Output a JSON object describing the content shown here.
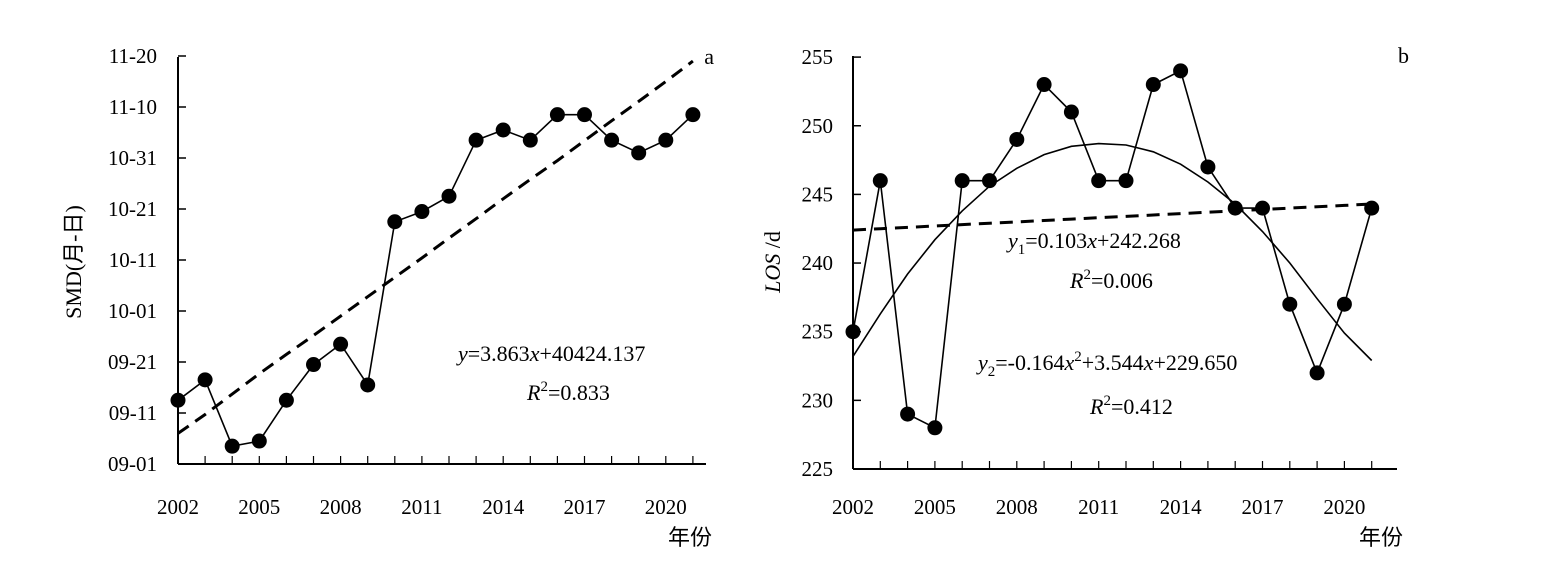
{
  "chart_data": [
    {
      "panel_label": "a",
      "type": "line",
      "ylabel": "SMD(月-日)",
      "xlabel": "年份",
      "x": [
        2002,
        2003,
        2004,
        2005,
        2006,
        2007,
        2008,
        2009,
        2010,
        2011,
        2012,
        2013,
        2014,
        2015,
        2016,
        2017,
        2018,
        2019,
        2020,
        2021
      ],
      "x_ticks": [
        "2002",
        "2005",
        "2008",
        "2011",
        "2014",
        "2017",
        "2020"
      ],
      "y_ticks": [
        "09-01",
        "09-11",
        "09-21",
        "10-01",
        "10-11",
        "10-21",
        "10-31",
        "11-10",
        "11-20"
      ],
      "ylim_days_after_sep1": [
        0,
        80
      ],
      "series": [
        {
          "style": "markers-line",
          "values_days_after_sep1": [
            12.5,
            16.5,
            3.5,
            4.5,
            12.5,
            19.5,
            23.5,
            15.5,
            47.5,
            49.5,
            52.5,
            63.5,
            65.5,
            63.5,
            68.5,
            68.5,
            63.5,
            61.0,
            63.5,
            68.5
          ]
        },
        {
          "style": "dashed-trend",
          "values_days_after_sep1": [
            6.0,
            9.7,
            13.7,
            17.7,
            21.5,
            25.2,
            29.0,
            32.8,
            36.6,
            40.4,
            44.3,
            48.1,
            52.0,
            55.8,
            59.5,
            63.4,
            67.3,
            71.1,
            75.0,
            79.0
          ]
        }
      ],
      "annotations": {
        "equation": "y=3.863x+40424.137",
        "r2": "R2=0.833",
        "eq_y": "y",
        "eq_mid": "=3.863",
        "eq_x": "x",
        "eq_end": "+40424.137",
        "r2_r": "R",
        "r2_sup": "2",
        "r2_val": "=0.833"
      }
    },
    {
      "panel_label": "b",
      "type": "line",
      "ylabel": "LOS /d",
      "ylabel_italic": "LOS",
      "ylabel_unit": " /d",
      "xlabel": "年份",
      "x": [
        2002,
        2003,
        2004,
        2005,
        2006,
        2007,
        2008,
        2009,
        2010,
        2011,
        2012,
        2013,
        2014,
        2015,
        2016,
        2017,
        2018,
        2019,
        2020,
        2021
      ],
      "x_ticks": [
        "2002",
        "2005",
        "2008",
        "2011",
        "2014",
        "2017",
        "2020"
      ],
      "y_ticks": [
        "225",
        "230",
        "235",
        "240",
        "245",
        "250",
        "255"
      ],
      "ylim": [
        225,
        255
      ],
      "series": [
        {
          "style": "markers-line",
          "values": [
            235,
            246,
            229,
            228,
            246,
            246,
            249,
            253,
            251,
            246,
            246,
            253,
            254,
            247,
            244,
            244,
            237,
            232,
            237,
            244
          ]
        },
        {
          "style": "dashed-linear-fit",
          "values": [
            242.4,
            242.5,
            242.6,
            242.7,
            242.8,
            242.9,
            243.0,
            243.1,
            243.2,
            243.3,
            243.4,
            243.5,
            243.6,
            243.7,
            243.8,
            243.9,
            244.0,
            244.1,
            244.2,
            244.3
          ]
        },
        {
          "style": "solid-quadratic-fit",
          "values": [
            233.2,
            236.3,
            239.2,
            241.7,
            243.8,
            245.6,
            246.9,
            247.9,
            248.5,
            248.7,
            248.6,
            248.1,
            247.2,
            245.9,
            244.3,
            242.3,
            240.0,
            237.4,
            234.9,
            232.9
          ]
        }
      ],
      "annotations": {
        "eq1": "y1=0.103x+242.268",
        "r2_1": "R2=0.006",
        "eq2": "y2=-0.164x2+3.544x+229.650",
        "r2_2": "R2=0.412",
        "eq1_y": "y",
        "eq1_sub": "1",
        "eq1_mid": "=0.103",
        "eq1_x": "x",
        "eq1_end": "+242.268",
        "r2_1_r": "R",
        "r2_1_sup": "2",
        "r2_1_val": "=0.006",
        "eq2_y": "y",
        "eq2_sub": "2",
        "eq2_a": "=-0.164",
        "eq2_x1": "x",
        "eq2_sup": "2",
        "eq2_b": "+3.544",
        "eq2_x2": "x",
        "eq2_end": "+229.650",
        "r2_2_r": "R",
        "r2_2_sup": "2",
        "r2_2_val": "=0.412"
      }
    }
  ]
}
